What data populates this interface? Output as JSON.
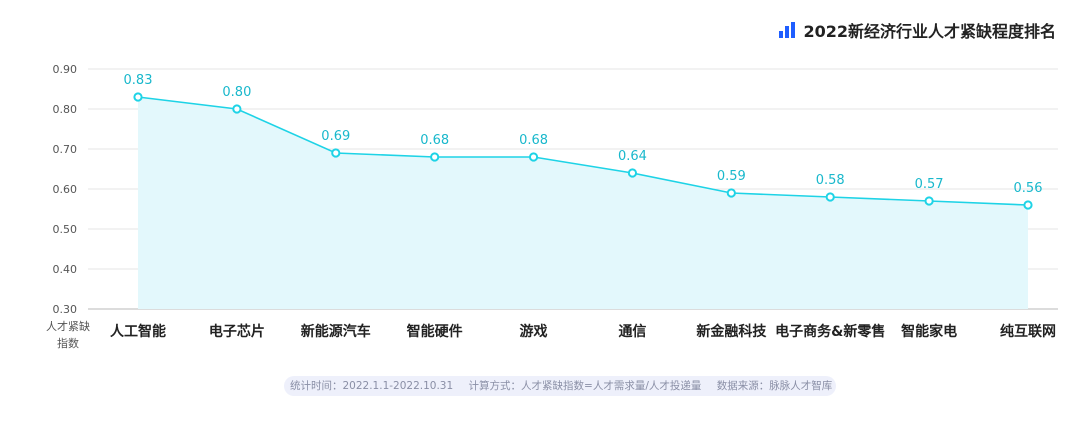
{
  "chart_data": {
    "type": "line",
    "title": "2022新经济行业人才紧缺程度排名",
    "ylabel": "人才紧缺指数",
    "ylabel_lines": [
      "人才紧缺",
      "指数"
    ],
    "categories": [
      "人工智能",
      "电子芯片",
      "新能源汽车",
      "智能硬件",
      "游戏",
      "通信",
      "新金融科技",
      "电子商务&新零售",
      "智能家电",
      "纯互联网"
    ],
    "values": [
      0.83,
      0.8,
      0.69,
      0.68,
      0.68,
      0.64,
      0.59,
      0.58,
      0.57,
      0.56
    ],
    "value_labels": [
      "0.83",
      "0.80",
      "0.69",
      "0.68",
      "0.68",
      "0.64",
      "0.59",
      "0.58",
      "0.57",
      "0.56"
    ],
    "ylim": [
      0.3,
      0.9
    ],
    "yticks": [
      0.3,
      0.4,
      0.5,
      0.6,
      0.7,
      0.8,
      0.9
    ],
    "ytick_labels": [
      "0.30",
      "0.40",
      "0.50",
      "0.60",
      "0.70",
      "0.80",
      "0.90"
    ],
    "grid": true,
    "area_fill": true,
    "line_color": "#1ed3e6",
    "label_color": "#19b8cc",
    "area_color": "#e3f8fc",
    "grid_color": "#e6e6e6",
    "title_icon": "bar-chart-icon",
    "title_icon_color": "#1f5eff"
  },
  "footnote": {
    "period": "统计时间：2022.1.1-2022.10.31",
    "method": "计算方式：人才紧缺指数=人才需求量/人才投递量",
    "source": "数据来源：脉脉人才智库"
  }
}
